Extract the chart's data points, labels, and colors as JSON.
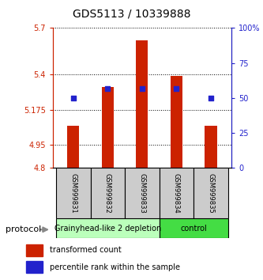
{
  "title": "GDS5113 / 10339888",
  "samples": [
    "GSM999831",
    "GSM999832",
    "GSM999833",
    "GSM999834",
    "GSM999835"
  ],
  "transformed_count": [
    5.07,
    5.32,
    5.62,
    5.39,
    5.07
  ],
  "percentile_rank": [
    50,
    57,
    57,
    57,
    50
  ],
  "bar_bottom": 4.8,
  "left_ylim": [
    4.8,
    5.7
  ],
  "left_yticks": [
    4.8,
    4.95,
    5.175,
    5.4,
    5.7
  ],
  "left_yticklabels": [
    "4.8",
    "4.95",
    "5.175",
    "5.4",
    "5.7"
  ],
  "right_ylim": [
    0,
    100
  ],
  "right_yticks": [
    0,
    25,
    50,
    75,
    100
  ],
  "right_yticklabels": [
    "0",
    "25",
    "50",
    "75",
    "100%"
  ],
  "bar_color": "#cc2200",
  "dot_color": "#2222cc",
  "dot_size": 25,
  "groups": [
    {
      "label": "Grainyhead-like 2 depletion",
      "samples": [
        0,
        1,
        2
      ],
      "color": "#bbffbb"
    },
    {
      "label": "control",
      "samples": [
        3,
        4
      ],
      "color": "#44dd44"
    }
  ],
  "protocol_label": "protocol",
  "legend_bar_label": "transformed count",
  "legend_dot_label": "percentile rank within the sample",
  "title_fontsize": 10,
  "tick_fontsize": 7,
  "label_fontsize": 8,
  "sample_fontsize": 6,
  "group_fontsize": 7
}
